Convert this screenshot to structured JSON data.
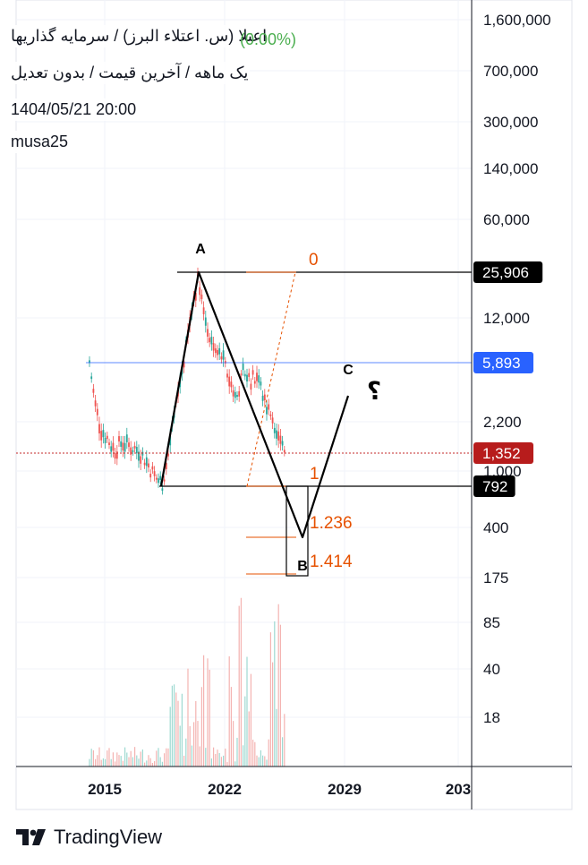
{
  "header": {
    "title": "اعتلا (س. اعتلاء البرز) / سرمایه گذاریها",
    "change": "(0.00%)",
    "subtitle": "یک ماهه / آخرین قیمت / بدون تعدیل",
    "datetime": "1404/05/21 20:00",
    "author": "musa25"
  },
  "branding": {
    "name": "TradingView"
  },
  "colors": {
    "price_black": "#000000",
    "price_blue": "#2962ff",
    "price_red": "#b71c1c",
    "fib": "#e65100",
    "candle_up": "#26a69a",
    "candle_down": "#ef5350"
  },
  "chart_data": {
    "type": "candlestick",
    "y_scale": "log",
    "y_ticks": [
      {
        "value": 1600000,
        "label": "1,600,000"
      },
      {
        "value": 700000,
        "label": "700,000"
      },
      {
        "value": 300000,
        "label": "300,000"
      },
      {
        "value": 140000,
        "label": "140,000"
      },
      {
        "value": 60000,
        "label": "60,000"
      },
      {
        "value": 12000,
        "label": "12,000"
      },
      {
        "value": 2200,
        "label": "2,200"
      },
      {
        "value": 1000,
        "label": "1,000"
      },
      {
        "value": 400,
        "label": "400"
      },
      {
        "value": 175,
        "label": "175"
      },
      {
        "value": 85,
        "label": "85"
      },
      {
        "value": 40,
        "label": "40"
      },
      {
        "value": 18,
        "label": "18"
      }
    ],
    "x_ticks": [
      "2015",
      "2022",
      "2029",
      "203"
    ],
    "price_labels": [
      {
        "value": 25906,
        "label": "25,906",
        "style": "black"
      },
      {
        "value": 5893,
        "label": "5,893",
        "style": "blue"
      },
      {
        "value": 1352,
        "label": "1,352",
        "style": "red"
      },
      {
        "value": 792,
        "label": "792",
        "style": "black"
      }
    ],
    "fibonacci": [
      {
        "level": "0",
        "value": 25906
      },
      {
        "level": "1",
        "value": 792
      },
      {
        "level": "1.236",
        "value": 300
      },
      {
        "level": "1.414",
        "value": 150
      }
    ],
    "wave_points": [
      {
        "label": "A",
        "value": 25906
      },
      {
        "label": "B",
        "value": 300
      },
      {
        "label": "C",
        "value": 5000
      }
    ],
    "annotation": "؟"
  }
}
